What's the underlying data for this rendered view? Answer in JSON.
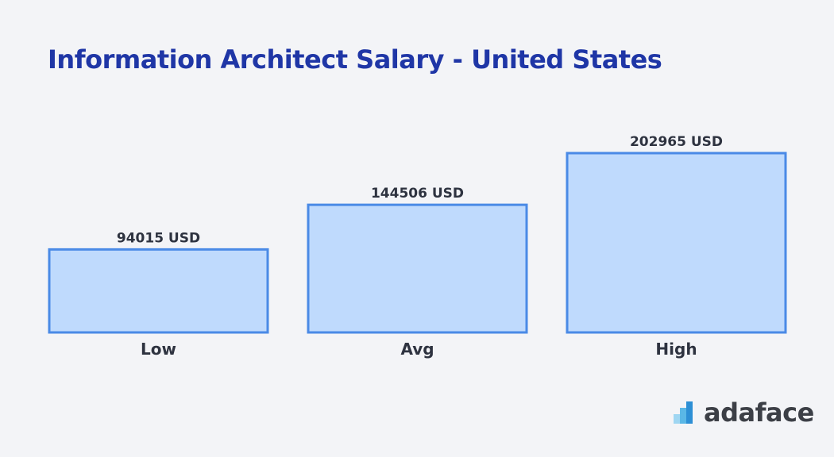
{
  "chart_data": {
    "type": "bar",
    "title": "Information Architect Salary - United States",
    "categories": [
      "Low",
      "Avg",
      "High"
    ],
    "values": [
      94015,
      144506,
      202965
    ],
    "value_labels": [
      "94015 USD",
      "144506 USD",
      "202965 USD"
    ],
    "unit": "USD",
    "xlabel": "",
    "ylabel": "",
    "ylim": [
      0,
      202965
    ],
    "grid": false,
    "colors": {
      "fill": "#bfdafd",
      "stroke": "#4a8ae6",
      "title": "#1f36a6",
      "text": "#2e3340"
    }
  },
  "brand": {
    "name": "adaface",
    "icon": "adaface-logo-icon"
  }
}
